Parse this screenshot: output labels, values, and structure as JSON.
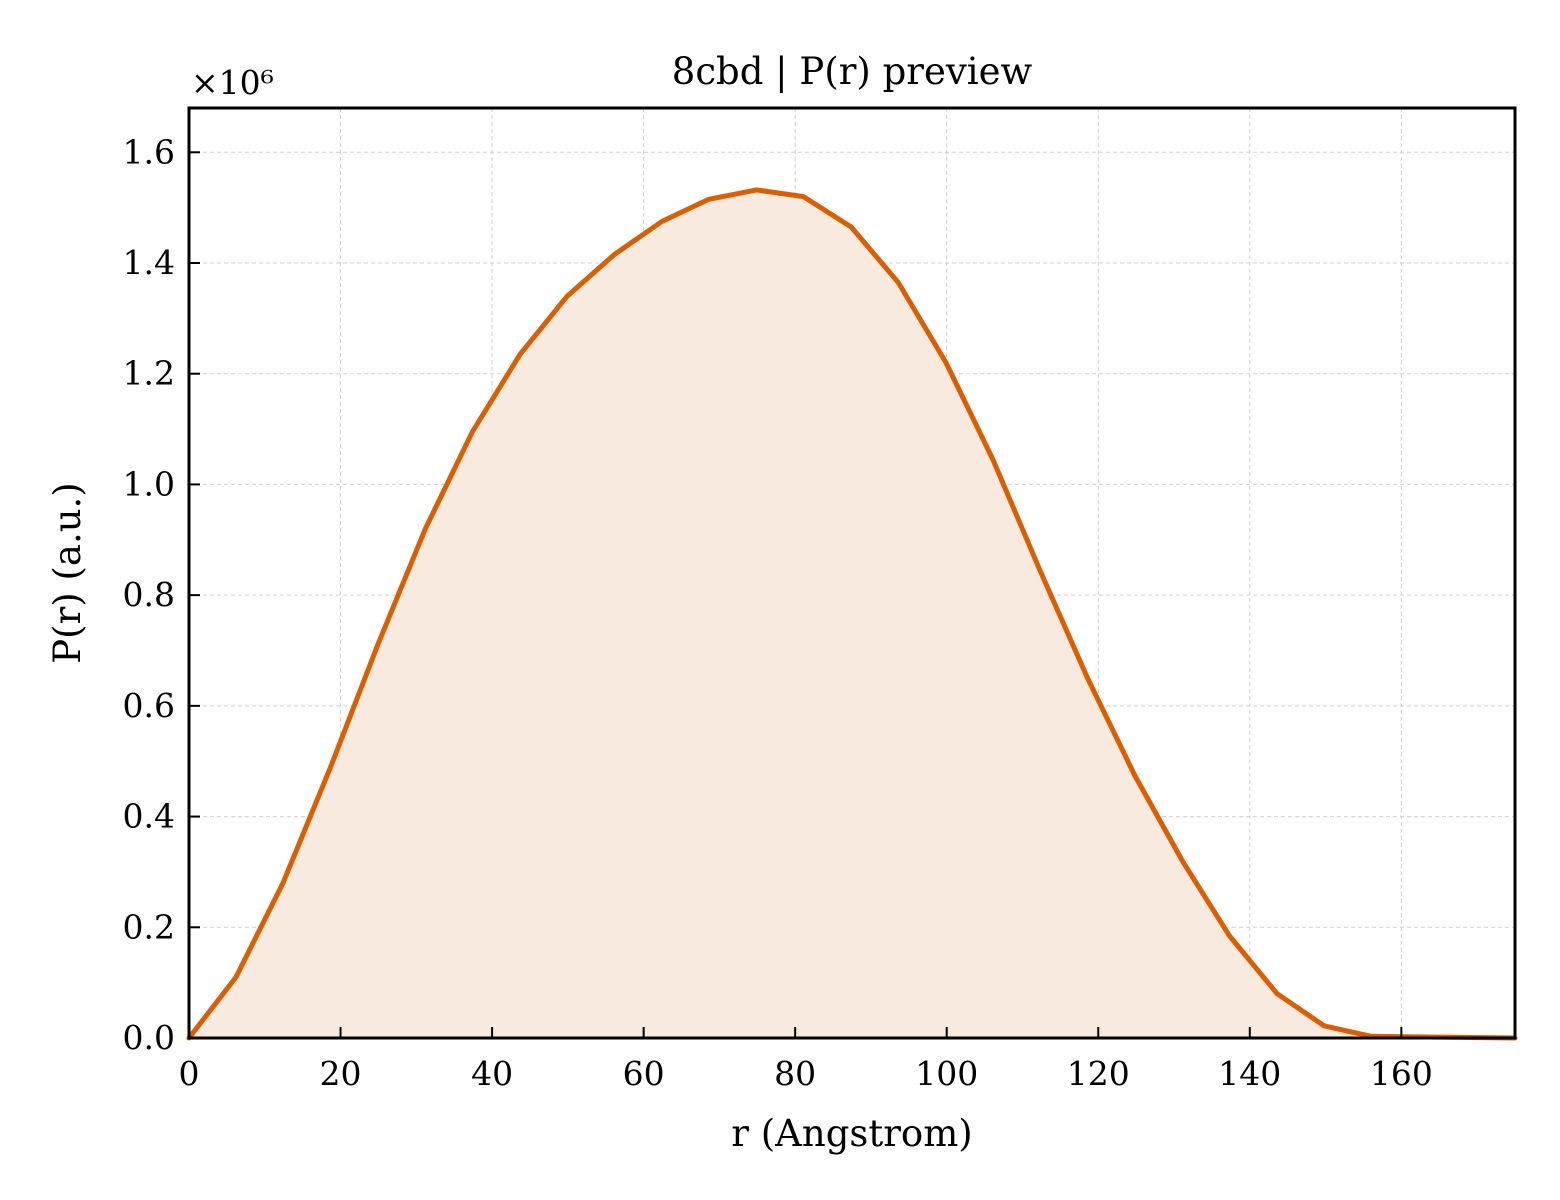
{
  "chart_data": {
    "type": "area",
    "title": "8cbd | P(r) preview",
    "xlabel": "r (Angstrom)",
    "ylabel": "P(r) (a.u.)",
    "y_multiplier_label": "×10⁶",
    "xlim": [
      0,
      175
    ],
    "ylim": [
      0,
      1.68
    ],
    "xticks": [
      0,
      20,
      40,
      60,
      80,
      100,
      120,
      140,
      160
    ],
    "xtick_labels": [
      "0",
      "20",
      "40",
      "60",
      "80",
      "100",
      "120",
      "140",
      "160"
    ],
    "yticks": [
      0.0,
      0.2,
      0.4,
      0.6,
      0.8,
      1.0,
      1.2,
      1.4,
      1.6
    ],
    "ytick_labels": [
      "0.0",
      "0.2",
      "0.4",
      "0.6",
      "0.8",
      "1.0",
      "1.2",
      "1.4",
      "1.6"
    ],
    "grid": true,
    "tick_direction": "in",
    "line_color": "#d95f02",
    "fill_color": "#f8eadf",
    "series": [
      {
        "x": [
          0,
          6.2,
          12.4,
          18.7,
          24.9,
          31.2,
          37.4,
          43.7,
          49.9,
          56.1,
          62.4,
          68.6,
          74.9,
          81.1,
          87.4,
          93.6,
          99.9,
          106.1,
          112.3,
          118.6,
          124.8,
          131.1,
          137.3,
          143.6,
          149.8,
          156.0,
          175.0
        ],
        "y": [
          0.0,
          0.11,
          0.28,
          0.49,
          0.71,
          0.92,
          1.095,
          1.235,
          1.34,
          1.415,
          1.475,
          1.515,
          1.532,
          1.52,
          1.465,
          1.365,
          1.22,
          1.045,
          0.845,
          0.65,
          0.475,
          0.32,
          0.185,
          0.08,
          0.022,
          0.003,
          0.0
        ]
      }
    ]
  }
}
